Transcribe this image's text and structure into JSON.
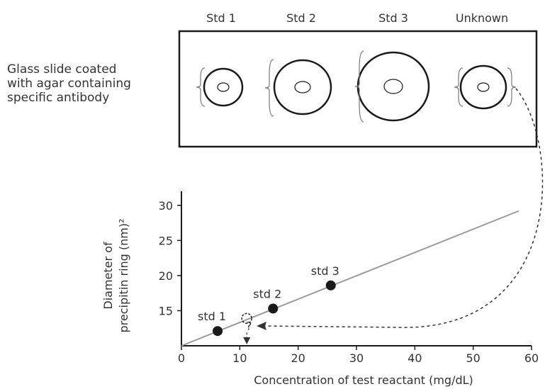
{
  "slide": {
    "labels": [
      "Std 1",
      "Std 2",
      "Std 3",
      "Unknown"
    ],
    "description": [
      "Glass slide coated",
      "with agar containing",
      "specific antibody"
    ]
  },
  "chart_data": {
    "type": "scatter",
    "xlabel": "Concentration of test reactant (mg/dL)",
    "ylabel": [
      "Diameter of",
      "precipitin ring (nm)²"
    ],
    "xlim": [
      0,
      60
    ],
    "ylim": [
      10,
      32
    ],
    "xticks": [
      0,
      10,
      20,
      30,
      40,
      50,
      60
    ],
    "yticks": [
      15,
      20,
      25,
      30
    ],
    "line": {
      "color": "#9a9a9a",
      "x": [
        0,
        57.8
      ],
      "y": [
        10,
        29.2
      ]
    },
    "series": [
      {
        "color": "#1a1a1a",
        "marker": "filled",
        "x": [
          6.2,
          15.7,
          25.6
        ],
        "y": [
          12.1,
          15.3,
          18.6
        ],
        "point_labels": [
          "std 1",
          "std 2",
          "std 3"
        ]
      },
      {
        "color": "#1a1a1a",
        "marker": "dashed",
        "x": [
          11.2
        ],
        "y": [
          13.9
        ],
        "point_labels": [
          "?"
        ]
      }
    ]
  }
}
